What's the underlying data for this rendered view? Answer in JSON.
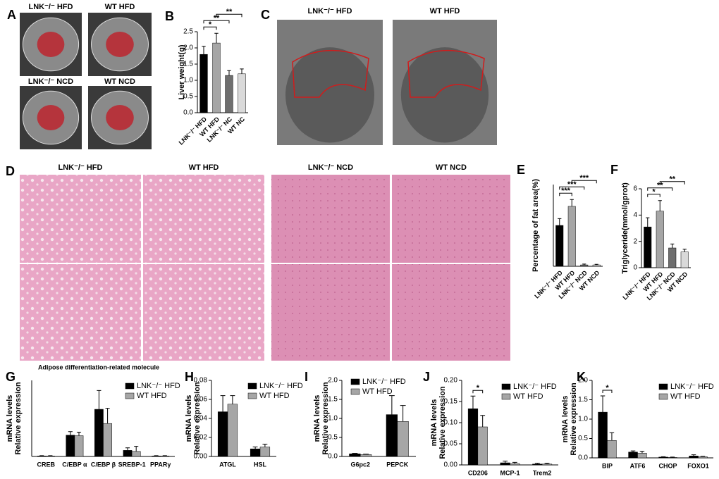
{
  "figure": {
    "image_panels": [
      {
        "letter": "A",
        "labels": [
          "LNK⁻/⁻ HFD",
          "WT HFD",
          "LNK⁻/⁻ NCD",
          "WT NCD"
        ]
      },
      {
        "letter": "C",
        "labels": [
          "LNK⁻/⁻ HFD",
          "WT HFD"
        ]
      },
      {
        "letter": "D",
        "labels": [
          "LNK⁻/⁻ HFD",
          "WT HFD",
          "LNK⁻/⁻ NCD",
          "WT NCD"
        ]
      }
    ]
  },
  "chart_data": [
    {
      "type": "bar",
      "panel": "B",
      "ylabel": [
        "Liver weight(g)"
      ],
      "categories": [
        "LNK⁻/⁻ HFD",
        "WT HFD",
        "LNK⁻/⁻ NC",
        "WT NC"
      ],
      "series": [
        {
          "colors": [
            "#000000",
            "#a6a6a6",
            "#6e6e6e",
            "#d9d9d9"
          ],
          "values": [
            1.8,
            2.15,
            1.15,
            1.2
          ],
          "errors": [
            0.25,
            0.3,
            0.15,
            0.15
          ]
        }
      ],
      "ylim": [
        0,
        2.5
      ],
      "yticks": [
        {
          "value": 0,
          "label": "0.0"
        },
        {
          "value": 0.5,
          "label": "0.5"
        },
        {
          "value": 1,
          "label": "1.0"
        },
        {
          "value": 1.5,
          "label": "1.5"
        },
        {
          "value": 2,
          "label": "2.0"
        },
        {
          "value": 2.5,
          "label": "2.5"
        }
      ],
      "brackets": [
        {
          "text": "*",
          "between": [
            0,
            1
          ]
        },
        {
          "text": "**",
          "between": [
            0,
            2
          ]
        },
        {
          "text": "**",
          "between": [
            1,
            3
          ]
        }
      ]
    },
    {
      "type": "bar",
      "panel": "E",
      "ylabel": [
        "Percentage of fat area(%)"
      ],
      "categories": [
        "LNK⁻/⁻ HFD",
        "WT HFD",
        "LNK⁻/⁻ NCD",
        "WT NCD"
      ],
      "series": [
        {
          "colors": [
            "#000000",
            "#a6a6a6",
            "#6e6e6e",
            "#d9d9d9"
          ],
          "values": [
            0.15,
            0.22,
            0.005,
            0.005
          ],
          "errors": [
            0.025,
            0.025,
            0.003,
            0.002
          ]
        }
      ],
      "ylim": [
        0,
        0.3
      ],
      "brackets": [
        {
          "text": "***",
          "between": [
            0,
            1
          ]
        },
        {
          "text": "***",
          "between": [
            0,
            2
          ]
        },
        {
          "text": "***",
          "between": [
            1,
            3
          ]
        }
      ]
    },
    {
      "type": "bar",
      "panel": "F",
      "ylabel": [
        "Triglyceride(mmol/gprot)"
      ],
      "categories": [
        "LNK⁻/⁻ HFD",
        "WT HFD",
        "LNK⁻/⁻ NCD",
        "WT NCD"
      ],
      "series": [
        {
          "colors": [
            "#000000",
            "#a6a6a6",
            "#6e6e6e",
            "#d9d9d9"
          ],
          "values": [
            3.1,
            4.3,
            1.5,
            1.2
          ],
          "errors": [
            0.7,
            0.8,
            0.3,
            0.2
          ]
        }
      ],
      "ylim": [
        0,
        6
      ],
      "yticks": [
        0,
        2,
        4,
        6
      ],
      "brackets": [
        {
          "text": "*",
          "between": [
            0,
            1
          ]
        },
        {
          "text": "**",
          "between": [
            0,
            2
          ]
        },
        {
          "text": "**",
          "between": [
            1,
            3
          ]
        }
      ]
    },
    {
      "type": "bar",
      "panel": "G",
      "title": "Adipose differentiation-related molecule",
      "ylabel": [
        "mRNA levels",
        "Relative expression"
      ],
      "categories": [
        "CREB",
        "C/EBP α",
        "C/EBP β",
        "SREBP-1",
        "PPARγ"
      ],
      "series": [
        {
          "name": "LNK⁻/⁻ HFD",
          "color": "#000000",
          "values": [
            0.01,
            0.42,
            0.93,
            0.12,
            0.01
          ],
          "errors": [
            0.005,
            0.07,
            0.37,
            0.05,
            0.005
          ]
        },
        {
          "name": "WT HFD",
          "color": "#a6a6a6",
          "values": [
            0.01,
            0.41,
            0.65,
            0.1,
            0.01
          ],
          "errors": [
            0.005,
            0.07,
            0.3,
            0.1,
            0.005
          ]
        }
      ],
      "ylim": [
        0,
        1.5
      ]
    },
    {
      "type": "bar",
      "panel": "H",
      "ylabel": [
        "mRNA levels",
        "Relative expression"
      ],
      "categories": [
        "ATGL",
        "HSL"
      ],
      "series": [
        {
          "name": "LNK⁻/⁻ HFD",
          "color": "#000000",
          "values": [
            0.047,
            0.008
          ],
          "errors": [
            0.017,
            0.002
          ]
        },
        {
          "name": "WT HFD",
          "color": "#a6a6a6",
          "values": [
            0.055,
            0.01
          ],
          "errors": [
            0.009,
            0.003
          ]
        }
      ],
      "ylim": [
        0,
        0.08
      ],
      "yticks": [
        {
          "value": 0,
          "label": "0.00"
        },
        {
          "value": 0.02,
          "label": "0.02"
        },
        {
          "value": 0.04,
          "label": "0.04"
        },
        {
          "value": 0.06,
          "label": "0.06"
        },
        {
          "value": 0.08,
          "label": "0.08"
        }
      ]
    },
    {
      "type": "bar",
      "panel": "I",
      "ylabel": [
        "mRNA levels",
        "Relative expression"
      ],
      "categories": [
        "G6pc2",
        "PEPCK"
      ],
      "series": [
        {
          "name": "LNK⁻/⁻ HFD",
          "color": "#000000",
          "values": [
            0.07,
            1.1
          ],
          "errors": [
            0.01,
            0.5
          ]
        },
        {
          "name": "WT HFD",
          "color": "#a6a6a6",
          "values": [
            0.05,
            0.92
          ],
          "errors": [
            0.01,
            0.42
          ]
        }
      ],
      "ylim": [
        0,
        2
      ],
      "yticks": [
        {
          "value": 0,
          "label": "0.0"
        },
        {
          "value": 0.5,
          "label": "0.5"
        },
        {
          "value": 1,
          "label": "1.0"
        },
        {
          "value": 1.5,
          "label": "1.5"
        },
        {
          "value": 2,
          "label": "2.0"
        }
      ]
    },
    {
      "type": "bar",
      "panel": "J",
      "ylabel": [
        "mRNA levels",
        "Relative expression"
      ],
      "categories": [
        "CD206",
        "MCP-1",
        "Trem2"
      ],
      "series": [
        {
          "name": "LNK⁻/⁻ HFD",
          "color": "#000000",
          "values": [
            0.133,
            0.005,
            0.002
          ],
          "errors": [
            0.03,
            0.004,
            0.002
          ]
        },
        {
          "name": "WT HFD",
          "color": "#a6a6a6",
          "values": [
            0.09,
            0.003,
            0.002
          ],
          "errors": [
            0.027,
            0.003,
            0.002
          ]
        }
      ],
      "ylim": [
        0,
        0.2
      ],
      "yticks": [
        {
          "value": 0,
          "label": "0.00"
        },
        {
          "value": 0.05,
          "label": "0.05"
        },
        {
          "value": 0.1,
          "label": "0.10"
        },
        {
          "value": 0.15,
          "label": "0.15"
        },
        {
          "value": 0.2,
          "label": "0.20"
        }
      ],
      "brackets": [
        {
          "text": "*",
          "category": 0
        }
      ]
    },
    {
      "type": "bar",
      "panel": "K",
      "ylabel": [
        "mRNA levels",
        "Relative expression"
      ],
      "categories": [
        "BIP",
        "ATF6",
        "CHOP",
        "FOXO1"
      ],
      "series": [
        {
          "name": "LNK⁻/⁻ HFD",
          "color": "#000000",
          "values": [
            1.18,
            0.15,
            0.02,
            0.05
          ],
          "errors": [
            0.42,
            0.03,
            0.01,
            0.03
          ]
        },
        {
          "name": "WT HFD",
          "color": "#a6a6a6",
          "values": [
            0.45,
            0.12,
            0.01,
            0.03
          ],
          "errors": [
            0.2,
            0.05,
            0.01,
            0.01
          ]
        }
      ],
      "ylim": [
        0,
        2
      ],
      "yticks": [
        {
          "value": 0,
          "label": "0.0"
        },
        {
          "value": 0.5,
          "label": "0.5"
        },
        {
          "value": 1,
          "label": "1.0"
        },
        {
          "value": 1.5,
          "label": "1.5"
        },
        {
          "value": 2,
          "label": "2.0"
        }
      ],
      "brackets": [
        {
          "text": "*",
          "category": 0
        }
      ]
    }
  ]
}
